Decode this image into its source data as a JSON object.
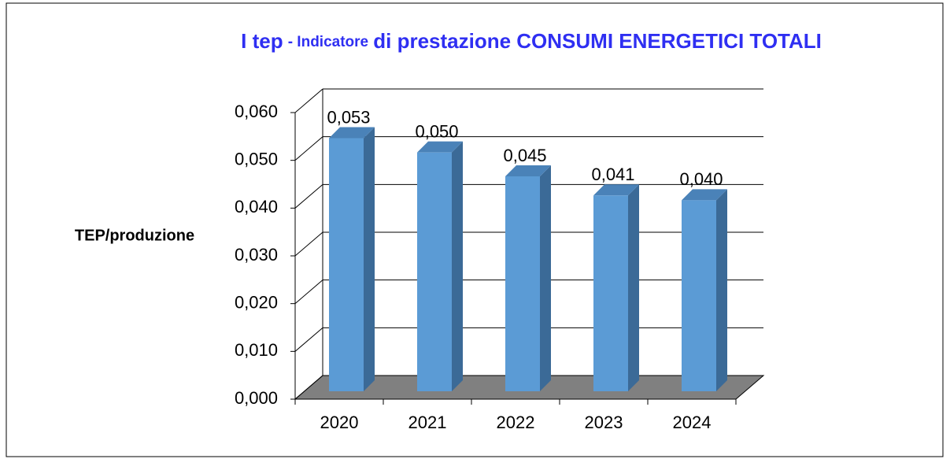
{
  "chart_data": {
    "type": "bar3d",
    "title": [
      "I tep",
      "- Indicatore",
      "di prestazione CONSUMI ENERGETICI TOTALI"
    ],
    "y_label": "TEP/produzione",
    "categories": [
      "2020",
      "2021",
      "2022",
      "2023",
      "2024"
    ],
    "values": [
      0.053,
      0.05,
      0.045,
      0.041,
      0.04
    ],
    "value_labels": [
      "0,053",
      "0,050",
      "0,045",
      "0,041",
      "0,040"
    ],
    "color": "#5b9bd5",
    "ylim": [
      0,
      0.06
    ],
    "yticks": [
      {
        "value": 0,
        "label": "0,000"
      },
      {
        "value": 0.01,
        "label": "0,010"
      },
      {
        "value": 0.02,
        "label": "0,020"
      },
      {
        "value": 0.03,
        "label": "0,030"
      },
      {
        "value": 0.04,
        "label": "0,040"
      },
      {
        "value": 0.05,
        "label": "0,050"
      },
      {
        "value": 0.06,
        "label": "0,060"
      }
    ],
    "grid": true
  }
}
